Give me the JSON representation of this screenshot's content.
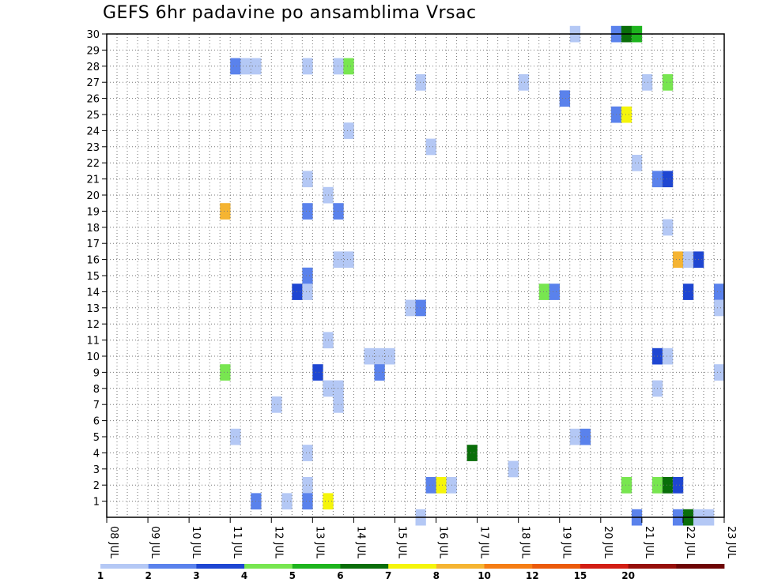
{
  "chart_data": {
    "type": "heatmap",
    "title": "GEFS 6hr padavine po ansamblima Vrsac",
    "xlabel": "",
    "ylabel": "",
    "x_tick_labels": [
      "08 JUL",
      "09 JUL",
      "10 JUL",
      "11 JUL",
      "12 JUL",
      "13 JUL",
      "14 JUL",
      "15 JUL",
      "16 JUL",
      "17 JUL",
      "18 JUL",
      "19 JUL",
      "20 JUL",
      "21 JUL",
      "22 JUL",
      "23 JUL"
    ],
    "x_range": [
      "08 JUL 00Z",
      "23 JUL 00Z"
    ],
    "time_step_hours": 6,
    "y_tick_labels": [
      "1",
      "2",
      "3",
      "4",
      "5",
      "6",
      "7",
      "8",
      "9",
      "10",
      "11",
      "12",
      "13",
      "14",
      "15",
      "16",
      "17",
      "18",
      "19",
      "20",
      "21",
      "22",
      "23",
      "24",
      "25",
      "26",
      "27",
      "28",
      "29",
      "30"
    ],
    "y_range": [
      0,
      30
    ],
    "grid": true,
    "legend": {
      "placement": "bottom",
      "boundaries": [
        "1",
        "2",
        "3",
        "4",
        "5",
        "6",
        "7",
        "8",
        "10",
        "12",
        "15",
        "20"
      ],
      "colors": [
        "#b4c8f5",
        "#5a82ec",
        "#1e46d2",
        "#78e650",
        "#1eb41e",
        "#0a6e0a",
        "#f5f50a",
        "#f5b432",
        "#f57d14",
        "#eb5a0a",
        "#d21e14",
        "#960f0a",
        "#6e0505"
      ]
    },
    "cells": [
      {
        "member": 30,
        "step": 45,
        "value": 1.5
      },
      {
        "member": 30,
        "step": 49,
        "value": 2.5
      },
      {
        "member": 30,
        "step": 50,
        "value": 6.5
      },
      {
        "member": 30,
        "step": 51,
        "value": 5.5
      },
      {
        "member": 28,
        "step": 12,
        "value": 2.5
      },
      {
        "member": 28,
        "step": 13,
        "value": 1.5
      },
      {
        "member": 28,
        "step": 14,
        "value": 1.5
      },
      {
        "member": 28,
        "step": 19,
        "value": 1.5
      },
      {
        "member": 28,
        "step": 22,
        "value": 1.5
      },
      {
        "member": 28,
        "step": 23,
        "value": 4.5
      },
      {
        "member": 27,
        "step": 30,
        "value": 1.5
      },
      {
        "member": 27,
        "step": 40,
        "value": 1.5
      },
      {
        "member": 27,
        "step": 52,
        "value": 1.5
      },
      {
        "member": 27,
        "step": 54,
        "value": 4.5
      },
      {
        "member": 26,
        "step": 44,
        "value": 2.5
      },
      {
        "member": 25,
        "step": 49,
        "value": 2.5
      },
      {
        "member": 25,
        "step": 50,
        "value": 7.5
      },
      {
        "member": 24,
        "step": 23,
        "value": 1.5
      },
      {
        "member": 23,
        "step": 31,
        "value": 1.5
      },
      {
        "member": 22,
        "step": 51,
        "value": 1.5
      },
      {
        "member": 21,
        "step": 19,
        "value": 1.5
      },
      {
        "member": 21,
        "step": 53,
        "value": 2.5
      },
      {
        "member": 21,
        "step": 54,
        "value": 3.5
      },
      {
        "member": 20,
        "step": 21,
        "value": 1.5
      },
      {
        "member": 19,
        "step": 11,
        "value": 9.0
      },
      {
        "member": 19,
        "step": 19,
        "value": 2.5
      },
      {
        "member": 19,
        "step": 22,
        "value": 2.5
      },
      {
        "member": 18,
        "step": 54,
        "value": 1.5
      },
      {
        "member": 16,
        "step": 22,
        "value": 1.5
      },
      {
        "member": 16,
        "step": 23,
        "value": 1.5
      },
      {
        "member": 16,
        "step": 55,
        "value": 9.0
      },
      {
        "member": 16,
        "step": 56,
        "value": 1.5
      },
      {
        "member": 16,
        "step": 57,
        "value": 3.5
      },
      {
        "member": 15,
        "step": 19,
        "value": 2.5
      },
      {
        "member": 14,
        "step": 18,
        "value": 3.5
      },
      {
        "member": 14,
        "step": 19,
        "value": 1.5
      },
      {
        "member": 14,
        "step": 42,
        "value": 4.5
      },
      {
        "member": 14,
        "step": 43,
        "value": 2.5
      },
      {
        "member": 14,
        "step": 56,
        "value": 3.5
      },
      {
        "member": 14,
        "step": 59,
        "value": 2.5
      },
      {
        "member": 13,
        "step": 29,
        "value": 1.5
      },
      {
        "member": 13,
        "step": 30,
        "value": 2.5
      },
      {
        "member": 13,
        "step": 59,
        "value": 1.5
      },
      {
        "member": 11,
        "step": 21,
        "value": 1.5
      },
      {
        "member": 10,
        "step": 25,
        "value": 1.5
      },
      {
        "member": 10,
        "step": 26,
        "value": 1.5
      },
      {
        "member": 10,
        "step": 27,
        "value": 1.5
      },
      {
        "member": 10,
        "step": 53,
        "value": 3.5
      },
      {
        "member": 10,
        "step": 54,
        "value": 1.5
      },
      {
        "member": 9,
        "step": 11,
        "value": 4.5
      },
      {
        "member": 9,
        "step": 20,
        "value": 3.5
      },
      {
        "member": 9,
        "step": 26,
        "value": 2.5
      },
      {
        "member": 9,
        "step": 59,
        "value": 1.5
      },
      {
        "member": 8,
        "step": 21,
        "value": 1.5
      },
      {
        "member": 8,
        "step": 22,
        "value": 1.5
      },
      {
        "member": 8,
        "step": 53,
        "value": 1.5
      },
      {
        "member": 7,
        "step": 16,
        "value": 1.5
      },
      {
        "member": 7,
        "step": 22,
        "value": 1.5
      },
      {
        "member": 5,
        "step": 12,
        "value": 1.5
      },
      {
        "member": 5,
        "step": 45,
        "value": 1.5
      },
      {
        "member": 5,
        "step": 46,
        "value": 2.5
      },
      {
        "member": 4,
        "step": 19,
        "value": 1.5
      },
      {
        "member": 4,
        "step": 35,
        "value": 6.5
      },
      {
        "member": 3,
        "step": 39,
        "value": 1.5
      },
      {
        "member": 2,
        "step": 19,
        "value": 1.5
      },
      {
        "member": 2,
        "step": 31,
        "value": 2.5
      },
      {
        "member": 2,
        "step": 32,
        "value": 7.5
      },
      {
        "member": 2,
        "step": 33,
        "value": 1.5
      },
      {
        "member": 2,
        "step": 50,
        "value": 4.5
      },
      {
        "member": 2,
        "step": 53,
        "value": 4.5
      },
      {
        "member": 2,
        "step": 54,
        "value": 6.5
      },
      {
        "member": 2,
        "step": 55,
        "value": 3.5
      },
      {
        "member": 1,
        "step": 14,
        "value": 2.5
      },
      {
        "member": 1,
        "step": 17,
        "value": 1.5
      },
      {
        "member": 1,
        "step": 19,
        "value": 2.5
      },
      {
        "member": 1,
        "step": 21,
        "value": 7.5
      },
      {
        "member": 0,
        "step": 30,
        "value": 1.5
      },
      {
        "member": 0,
        "step": 51,
        "value": 2.5
      },
      {
        "member": 0,
        "step": 55,
        "value": 2.5
      },
      {
        "member": 0,
        "step": 56,
        "value": 6.5
      },
      {
        "member": 0,
        "step": 57,
        "value": 1.5
      },
      {
        "member": 0,
        "step": 58,
        "value": 1.5
      }
    ]
  }
}
